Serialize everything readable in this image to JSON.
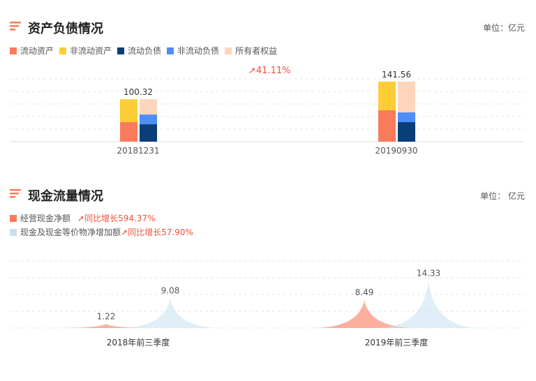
{
  "sections": [
    {
      "title": "资产负债情况",
      "unit": "单位：亿元",
      "icon": "sort-lines-icon"
    },
    {
      "title": "现金流量情况",
      "unit": "单位： 亿元",
      "icon": "sort-lines-icon"
    }
  ],
  "growth_label": "41.11%",
  "cash_legend": [
    {
      "label": "经营现金净额",
      "growth": "同比增长594.37%",
      "color": "#fa7b5c"
    },
    {
      "label": "现金及现金等价物净增加额",
      "growth": "同比增长57.90%",
      "color": "#c6e1f0"
    }
  ],
  "chart_data": [
    {
      "type": "bar",
      "stacked": true,
      "categories": [
        "20181231",
        "20190930"
      ],
      "totals": [
        "100.32",
        "141.56"
      ],
      "stacks": [
        {
          "stack": "assets",
          "series": [
            {
              "name": "流动资产",
              "color": "#fa7b5c",
              "values": [
                46,
                74
              ]
            },
            {
              "name": "非流动资产",
              "color": "#fdcd36",
              "values": [
                54,
                67.5
              ]
            }
          ]
        },
        {
          "stack": "liabilities",
          "series": [
            {
              "name": "流动负债",
              "color": "#093e78",
              "values": [
                41,
                46
              ]
            },
            {
              "name": "非流动负债",
              "color": "#4f8ef7",
              "values": [
                23,
                23
              ]
            },
            {
              "name": "所有者权益",
              "color": "#fdd5bd",
              "values": [
                36,
                72.5
              ]
            }
          ]
        }
      ],
      "legend": [
        "流动资产",
        "非流动资产",
        "流动负债",
        "非流动负债",
        "所有者权益"
      ],
      "grid": "dashed",
      "ylim": [
        0,
        150
      ]
    },
    {
      "type": "area",
      "categories": [
        "2018年前三季度",
        "2019年前三季度"
      ],
      "series": [
        {
          "name": "经营现金净额",
          "color": "#fa7b5c",
          "values": [
            1.22,
            8.49
          ]
        },
        {
          "name": "现金及现金等价物净增加额",
          "color": "#c6e1f0",
          "values": [
            9.08,
            14.33
          ]
        }
      ],
      "grid": "dashed",
      "ylim": [
        0,
        16
      ]
    }
  ]
}
